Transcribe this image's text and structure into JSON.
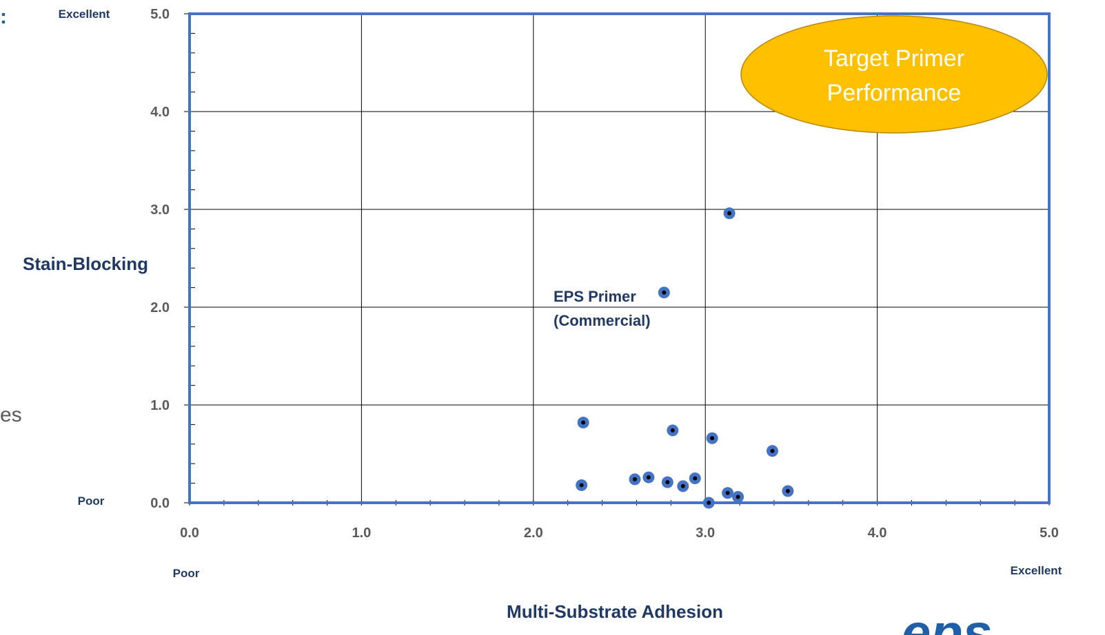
{
  "chart_data": {
    "type": "scatter",
    "xlabel": "Multi-Substrate Adhesion",
    "ylabel": "Stain-Blocking",
    "xlim": [
      0,
      5
    ],
    "ylim": [
      0,
      5
    ],
    "x_ticks": [
      "0.0",
      "1.0",
      "2.0",
      "3.0",
      "4.0",
      "5.0"
    ],
    "y_ticks": [
      "0.0",
      "1.0",
      "2.0",
      "3.0",
      "4.0",
      "5.0"
    ],
    "grid": true,
    "x_poor_label": "Poor",
    "x_excellent_label": "Excellent",
    "y_poor_label": "Poor",
    "y_excellent_label": "Excellent",
    "points": [
      {
        "x": 3.14,
        "y": 2.96
      },
      {
        "x": 2.76,
        "y": 2.15
      },
      {
        "x": 2.29,
        "y": 0.82
      },
      {
        "x": 2.81,
        "y": 0.74
      },
      {
        "x": 3.04,
        "y": 0.66
      },
      {
        "x": 3.39,
        "y": 0.53
      },
      {
        "x": 2.28,
        "y": 0.18
      },
      {
        "x": 2.59,
        "y": 0.24
      },
      {
        "x": 2.67,
        "y": 0.26
      },
      {
        "x": 2.78,
        "y": 0.21
      },
      {
        "x": 2.87,
        "y": 0.17
      },
      {
        "x": 2.94,
        "y": 0.25
      },
      {
        "x": 3.13,
        "y": 0.1
      },
      {
        "x": 3.19,
        "y": 0.06
      },
      {
        "x": 3.48,
        "y": 0.12
      },
      {
        "x": 3.02,
        "y": 0.0
      }
    ],
    "annotation": {
      "line1": "EPS Primer",
      "line2": "(Commercial)"
    },
    "target_region": {
      "line1": "Target Primer",
      "line2": "Performance",
      "color": "#ffc000"
    },
    "colors": {
      "marker_fill": "#4472c4",
      "marker_center": "#000000",
      "frame": "#4472c4",
      "grid": "#000000"
    }
  },
  "page_fragments": {
    "left_colon": ":",
    "left_text": "es"
  },
  "logo": {
    "text": "eps"
  }
}
